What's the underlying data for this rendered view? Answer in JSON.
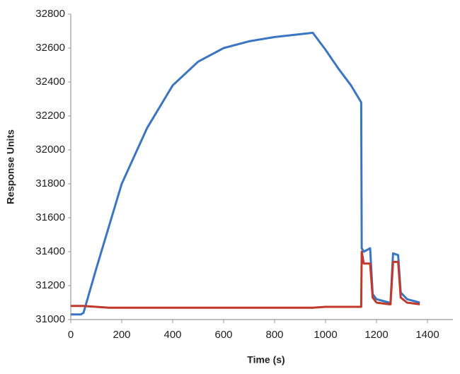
{
  "chart_data": {
    "type": "line",
    "x_label": "Time  (s)",
    "y_label": "Response Units",
    "x": [
      0,
      40,
      50,
      100,
      150,
      200,
      300,
      400,
      500,
      600,
      700,
      800,
      950,
      1000,
      1050,
      1100,
      1140,
      1142,
      1150,
      1175,
      1185,
      1200,
      1250,
      1255,
      1265,
      1285,
      1295,
      1320,
      1370
    ],
    "series": [
      {
        "color": "#3a75c4",
        "values": [
          31030,
          31030,
          31040,
          31300,
          31550,
          31800,
          32130,
          32380,
          32520,
          32600,
          32640,
          32665,
          32690,
          32590,
          32480,
          32380,
          32280,
          31420,
          31400,
          31420,
          31150,
          31120,
          31100,
          31100,
          31390,
          31380,
          31160,
          31120,
          31100
        ]
      },
      {
        "color": "#c0392b",
        "values": [
          31080,
          31080,
          31080,
          31075,
          31070,
          31070,
          31070,
          31070,
          31070,
          31070,
          31070,
          31070,
          31070,
          31075,
          31075,
          31075,
          31075,
          31400,
          31330,
          31330,
          31130,
          31100,
          31090,
          31090,
          31340,
          31340,
          31130,
          31100,
          31090
        ]
      }
    ],
    "xlim": [
      0,
      1500
    ],
    "xticks": [
      0,
      200,
      400,
      600,
      800,
      1000,
      1200,
      1400
    ],
    "ylim": [
      31000,
      32800
    ],
    "yticks": [
      31000,
      31200,
      31400,
      31600,
      31800,
      32000,
      32200,
      32400,
      32600,
      32800
    ]
  }
}
